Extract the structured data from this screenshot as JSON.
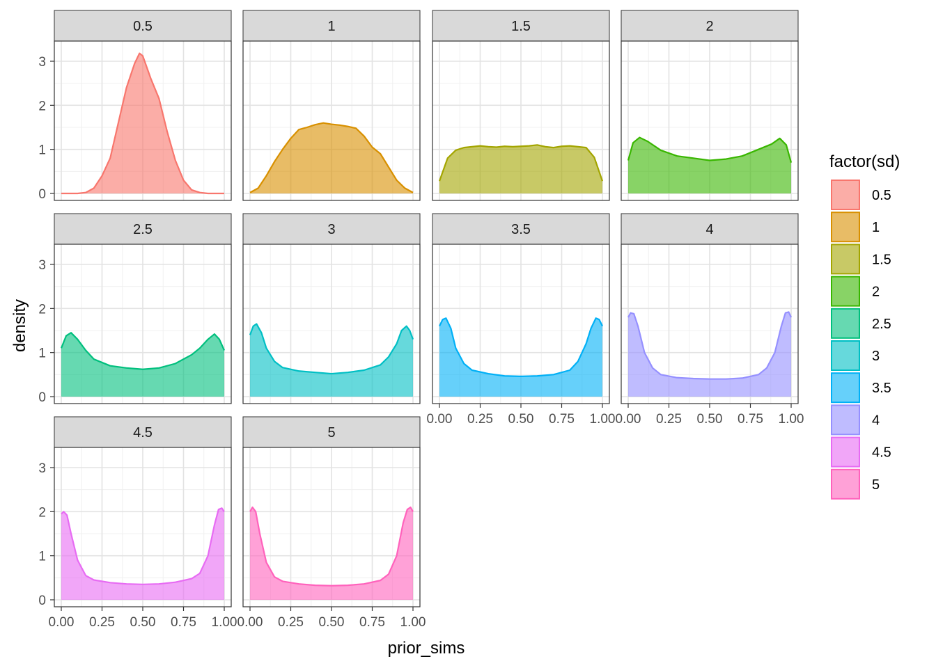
{
  "chart_data": {
    "type": "area",
    "facet_var": "sd",
    "xlabel": "prior_sims",
    "ylabel": "density",
    "xlim": [
      0,
      1
    ],
    "ylim": [
      0,
      3.3
    ],
    "x_ticks": [
      0,
      0.25,
      0.5,
      0.75,
      1
    ],
    "x_tick_labels": [
      "0.00",
      "0.25",
      "0.50",
      "0.75",
      "1.00"
    ],
    "y_ticks": [
      0,
      1,
      2,
      3
    ],
    "y_tick_labels": [
      "0",
      "1",
      "2",
      "3"
    ],
    "grid": true,
    "legend": {
      "title": "factor(sd)",
      "position": "right"
    },
    "panels": [
      {
        "label": "0.5",
        "color": "#F8766D",
        "x": [
          0,
          0.1,
          0.15,
          0.2,
          0.25,
          0.3,
          0.35,
          0.4,
          0.45,
          0.48,
          0.5,
          0.55,
          0.6,
          0.65,
          0.7,
          0.75,
          0.8,
          0.85,
          0.9,
          1
        ],
        "y": [
          0,
          0,
          0.02,
          0.12,
          0.4,
          0.8,
          1.6,
          2.4,
          2.95,
          3.18,
          3.12,
          2.6,
          2.15,
          1.4,
          0.75,
          0.3,
          0.08,
          0.02,
          0,
          0
        ]
      },
      {
        "label": "1",
        "color": "#D89000",
        "x": [
          0,
          0.05,
          0.1,
          0.15,
          0.2,
          0.25,
          0.3,
          0.35,
          0.4,
          0.45,
          0.5,
          0.55,
          0.6,
          0.65,
          0.7,
          0.75,
          0.8,
          0.85,
          0.9,
          0.95,
          1
        ],
        "y": [
          0.02,
          0.12,
          0.4,
          0.72,
          1.0,
          1.25,
          1.45,
          1.5,
          1.56,
          1.6,
          1.57,
          1.55,
          1.52,
          1.48,
          1.3,
          1.05,
          0.9,
          0.6,
          0.3,
          0.12,
          0.02
        ]
      },
      {
        "label": "1.5",
        "color": "#A3A500",
        "x": [
          0,
          0.05,
          0.1,
          0.15,
          0.2,
          0.25,
          0.3,
          0.35,
          0.4,
          0.45,
          0.5,
          0.55,
          0.6,
          0.65,
          0.7,
          0.75,
          0.8,
          0.85,
          0.9,
          0.95,
          1
        ],
        "y": [
          0.28,
          0.8,
          0.98,
          1.04,
          1.06,
          1.08,
          1.06,
          1.05,
          1.07,
          1.06,
          1.07,
          1.08,
          1.1,
          1.06,
          1.04,
          1.07,
          1.08,
          1.06,
          1.04,
          0.82,
          0.28
        ]
      },
      {
        "label": "2",
        "color": "#39B600",
        "x": [
          0,
          0.03,
          0.07,
          0.12,
          0.2,
          0.3,
          0.4,
          0.5,
          0.6,
          0.7,
          0.8,
          0.88,
          0.93,
          0.97,
          1
        ],
        "y": [
          0.75,
          1.15,
          1.27,
          1.18,
          0.98,
          0.85,
          0.8,
          0.75,
          0.78,
          0.85,
          1.0,
          1.12,
          1.25,
          1.1,
          0.7
        ]
      },
      {
        "label": "2.5",
        "color": "#00BF7D",
        "x": [
          0,
          0.03,
          0.06,
          0.1,
          0.15,
          0.2,
          0.3,
          0.4,
          0.5,
          0.6,
          0.7,
          0.8,
          0.85,
          0.9,
          0.94,
          0.97,
          1
        ],
        "y": [
          1.1,
          1.38,
          1.45,
          1.3,
          1.05,
          0.85,
          0.7,
          0.65,
          0.62,
          0.65,
          0.75,
          0.95,
          1.1,
          1.3,
          1.42,
          1.3,
          1.05
        ]
      },
      {
        "label": "3",
        "color": "#00BFC4",
        "x": [
          0,
          0.02,
          0.04,
          0.07,
          0.1,
          0.15,
          0.2,
          0.3,
          0.4,
          0.5,
          0.6,
          0.7,
          0.8,
          0.85,
          0.9,
          0.93,
          0.96,
          0.98,
          1
        ],
        "y": [
          1.4,
          1.6,
          1.65,
          1.45,
          1.1,
          0.8,
          0.66,
          0.58,
          0.55,
          0.52,
          0.55,
          0.6,
          0.72,
          0.9,
          1.2,
          1.5,
          1.6,
          1.5,
          1.3
        ]
      },
      {
        "label": "3.5",
        "color": "#00B0F6",
        "x": [
          0,
          0.02,
          0.04,
          0.07,
          0.1,
          0.15,
          0.2,
          0.3,
          0.4,
          0.5,
          0.6,
          0.7,
          0.8,
          0.85,
          0.9,
          0.93,
          0.96,
          0.98,
          1
        ],
        "y": [
          1.6,
          1.75,
          1.78,
          1.55,
          1.1,
          0.75,
          0.6,
          0.52,
          0.47,
          0.46,
          0.47,
          0.5,
          0.6,
          0.8,
          1.2,
          1.55,
          1.78,
          1.75,
          1.6
        ]
      },
      {
        "label": "4",
        "color": "#9590FF",
        "x": [
          0,
          0.015,
          0.035,
          0.06,
          0.1,
          0.15,
          0.2,
          0.3,
          0.4,
          0.5,
          0.6,
          0.7,
          0.8,
          0.85,
          0.9,
          0.94,
          0.965,
          0.985,
          1
        ],
        "y": [
          1.8,
          1.9,
          1.88,
          1.6,
          1.0,
          0.65,
          0.5,
          0.43,
          0.41,
          0.4,
          0.4,
          0.42,
          0.5,
          0.65,
          1.0,
          1.6,
          1.9,
          1.92,
          1.8
        ]
      },
      {
        "label": "4.5",
        "color": "#E76BF3",
        "x": [
          0,
          0.015,
          0.035,
          0.06,
          0.1,
          0.15,
          0.2,
          0.3,
          0.4,
          0.5,
          0.6,
          0.7,
          0.8,
          0.85,
          0.9,
          0.94,
          0.965,
          0.985,
          1
        ],
        "y": [
          1.95,
          2.0,
          1.92,
          1.5,
          0.9,
          0.55,
          0.45,
          0.39,
          0.36,
          0.35,
          0.36,
          0.4,
          0.48,
          0.6,
          1.0,
          1.7,
          2.05,
          2.08,
          2.0
        ]
      },
      {
        "label": "5",
        "color": "#FF62BC",
        "x": [
          0,
          0.015,
          0.035,
          0.06,
          0.1,
          0.15,
          0.2,
          0.3,
          0.4,
          0.5,
          0.6,
          0.7,
          0.8,
          0.85,
          0.9,
          0.94,
          0.965,
          0.985,
          1
        ],
        "y": [
          2.0,
          2.1,
          2.0,
          1.5,
          0.85,
          0.52,
          0.42,
          0.36,
          0.33,
          0.32,
          0.33,
          0.36,
          0.44,
          0.58,
          1.0,
          1.75,
          2.05,
          2.1,
          2.0
        ]
      }
    ]
  }
}
